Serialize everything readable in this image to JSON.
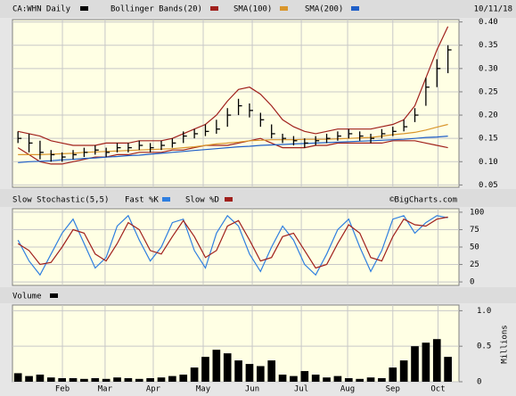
{
  "chart_data": [
    {
      "type": "ohlc",
      "title": "CA:WHN Daily",
      "color": "#000000",
      "date": "10/11/18",
      "xlim": [
        -0.5,
        40
      ],
      "ylim": [
        0.045,
        0.405
      ],
      "yticks": [
        {
          "value": 0.4,
          "label": "0.40"
        },
        0.35,
        {
          "value": 0.3,
          "label": "0.30"
        },
        0.25,
        {
          "value": 0.2,
          "label": "0.20"
        },
        0.15,
        {
          "value": 0.1,
          "label": "0.10"
        },
        0.05
      ],
      "grid": true,
      "high": [
        0.165,
        0.16,
        0.145,
        0.125,
        0.12,
        0.125,
        0.13,
        0.135,
        0.13,
        0.14,
        0.14,
        0.145,
        0.14,
        0.145,
        0.15,
        0.165,
        0.17,
        0.18,
        0.19,
        0.215,
        0.235,
        0.225,
        0.205,
        0.18,
        0.16,
        0.155,
        0.15,
        0.155,
        0.16,
        0.165,
        0.17,
        0.165,
        0.16,
        0.17,
        0.175,
        0.19,
        0.215,
        0.28,
        0.32,
        0.35
      ],
      "low": [
        0.14,
        0.12,
        0.105,
        0.1,
        0.1,
        0.105,
        0.11,
        0.115,
        0.11,
        0.12,
        0.12,
        0.125,
        0.12,
        0.125,
        0.13,
        0.14,
        0.15,
        0.155,
        0.16,
        0.175,
        0.2,
        0.195,
        0.175,
        0.15,
        0.14,
        0.135,
        0.13,
        0.135,
        0.14,
        0.145,
        0.15,
        0.145,
        0.14,
        0.15,
        0.155,
        0.165,
        0.185,
        0.22,
        0.26,
        0.29
      ],
      "close": [
        0.15,
        0.14,
        0.12,
        0.115,
        0.11,
        0.115,
        0.12,
        0.125,
        0.12,
        0.13,
        0.13,
        0.135,
        0.13,
        0.135,
        0.14,
        0.155,
        0.16,
        0.165,
        0.17,
        0.2,
        0.22,
        0.21,
        0.19,
        0.16,
        0.15,
        0.145,
        0.14,
        0.145,
        0.15,
        0.155,
        0.16,
        0.155,
        0.15,
        0.16,
        0.165,
        0.175,
        0.2,
        0.26,
        0.3,
        0.34
      ],
      "series": [
        {
          "name": "Bollinger Bands(20)",
          "color": "#a0201c",
          "upper": [
            0.165,
            0.16,
            0.155,
            0.145,
            0.14,
            0.135,
            0.135,
            0.135,
            0.14,
            0.14,
            0.14,
            0.145,
            0.145,
            0.145,
            0.15,
            0.16,
            0.17,
            0.18,
            0.2,
            0.23,
            0.255,
            0.26,
            0.245,
            0.22,
            0.19,
            0.175,
            0.165,
            0.16,
            0.165,
            0.17,
            0.17,
            0.17,
            0.17,
            0.175,
            0.18,
            0.19,
            0.22,
            0.28,
            0.34,
            0.39
          ],
          "lower": [
            0.13,
            0.115,
            0.1,
            0.095,
            0.095,
            0.1,
            0.105,
            0.11,
            0.11,
            0.115,
            0.115,
            0.12,
            0.12,
            0.12,
            0.125,
            0.125,
            0.13,
            0.135,
            0.135,
            0.135,
            0.14,
            0.145,
            0.15,
            0.14,
            0.13,
            0.13,
            0.13,
            0.135,
            0.135,
            0.14,
            0.14,
            0.14,
            0.14,
            0.14,
            0.145,
            0.145,
            0.145,
            0.14,
            0.135,
            0.13
          ]
        },
        {
          "name": "SMA(100)",
          "color": "#d9962c",
          "values": [
            0.115,
            0.115,
            0.115,
            0.116,
            0.117,
            0.118,
            0.12,
            0.121,
            0.122,
            0.123,
            0.124,
            0.125,
            0.126,
            0.127,
            0.128,
            0.13,
            0.132,
            0.135,
            0.138,
            0.14,
            0.142,
            0.145,
            0.146,
            0.147,
            0.147,
            0.147,
            0.148,
            0.148,
            0.148,
            0.149,
            0.15,
            0.151,
            0.152,
            0.155,
            0.158,
            0.16,
            0.163,
            0.168,
            0.174,
            0.18
          ]
        },
        {
          "name": "SMA(200)",
          "color": "#1f5fc8",
          "values": [
            0.098,
            0.1,
            0.101,
            0.102,
            0.104,
            0.105,
            0.107,
            0.108,
            0.11,
            0.111,
            0.113,
            0.114,
            0.116,
            0.118,
            0.12,
            0.122,
            0.124,
            0.126,
            0.128,
            0.13,
            0.132,
            0.133,
            0.135,
            0.136,
            0.137,
            0.138,
            0.139,
            0.14,
            0.141,
            0.142,
            0.143,
            0.144,
            0.145,
            0.146,
            0.147,
            0.148,
            0.15,
            0.152,
            0.153,
            0.155
          ]
        }
      ]
    },
    {
      "type": "line",
      "title": "Slow Stochastic(5,5)",
      "credit": "©BigCharts.com",
      "xlim": [
        -0.5,
        40
      ],
      "ylim": [
        -5,
        105
      ],
      "yticks": [
        100,
        75,
        50,
        25,
        0
      ],
      "grid": true,
      "series": [
        {
          "name": "Fast %K",
          "color": "#2f7fe0",
          "values": [
            60,
            30,
            10,
            40,
            70,
            90,
            55,
            20,
            35,
            80,
            95,
            60,
            30,
            50,
            85,
            90,
            45,
            20,
            70,
            95,
            80,
            40,
            15,
            50,
            80,
            60,
            25,
            10,
            40,
            75,
            90,
            50,
            15,
            45,
            90,
            95,
            70,
            85,
            95,
            92
          ]
        },
        {
          "name": "Slow %D",
          "color": "#a0201c",
          "values": [
            55,
            45,
            25,
            28,
            50,
            75,
            70,
            40,
            30,
            55,
            85,
            75,
            45,
            40,
            65,
            88,
            65,
            35,
            45,
            80,
            88,
            60,
            30,
            35,
            65,
            70,
            45,
            20,
            25,
            55,
            82,
            70,
            35,
            30,
            65,
            90,
            82,
            80,
            90,
            93
          ]
        }
      ]
    },
    {
      "type": "bar",
      "title": "Volume",
      "color": "#000000",
      "ylabel": "Millions",
      "xlim": [
        -0.5,
        40
      ],
      "ylim": [
        0,
        1.08
      ],
      "yticks": [
        {
          "value": 1,
          "label": "1.0"
        },
        0.5,
        0
      ],
      "grid": true,
      "xticks": [
        {
          "value": 4.03,
          "label": "Feb"
        },
        {
          "value": 7.9,
          "label": "Mar"
        },
        {
          "value": 12.27,
          "label": "Apr"
        },
        {
          "value": 16.8,
          "label": "May"
        },
        {
          "value": 21.25,
          "label": "Jun"
        },
        {
          "value": 25.7,
          "label": "Jul"
        },
        {
          "value": 29.9,
          "label": "Aug"
        },
        {
          "value": 34.0,
          "label": "Sep"
        },
        {
          "value": 38.1,
          "label": "Oct"
        }
      ],
      "values": [
        0.12,
        0.08,
        0.1,
        0.06,
        0.05,
        0.05,
        0.04,
        0.05,
        0.04,
        0.06,
        0.05,
        0.04,
        0.05,
        0.06,
        0.08,
        0.1,
        0.2,
        0.35,
        0.45,
        0.4,
        0.3,
        0.25,
        0.22,
        0.3,
        0.1,
        0.08,
        0.15,
        0.1,
        0.06,
        0.08,
        0.05,
        0.04,
        0.06,
        0.05,
        0.2,
        0.3,
        0.5,
        0.55,
        0.6,
        0.35
      ]
    }
  ]
}
